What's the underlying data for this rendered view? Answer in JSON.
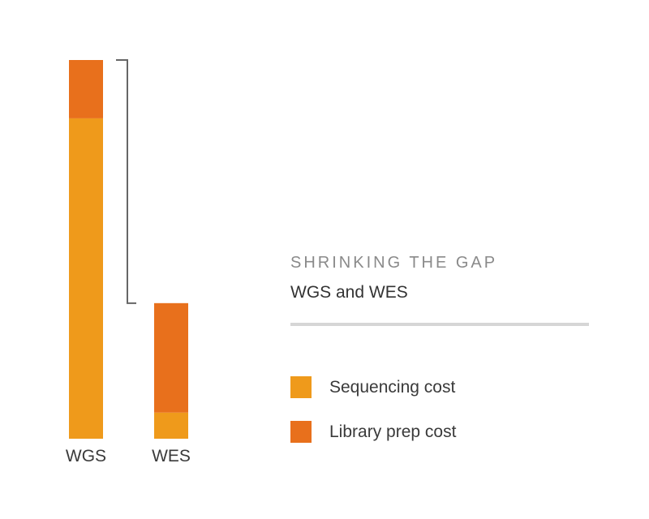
{
  "chart_data": {
    "type": "bar",
    "stacked": true,
    "title": "SHRINKING THE GAP",
    "subtitle": "WGS and WES",
    "categories": [
      "WGS",
      "WES"
    ],
    "series": [
      {
        "name": "Sequencing cost",
        "color": "#EF9A1B",
        "values": [
          84.6,
          6.9
        ]
      },
      {
        "name": "Library prep cost",
        "color": "#E8701C",
        "values": [
          15.4,
          28.9
        ]
      }
    ],
    "ylim": [
      0,
      100
    ],
    "axes_visible": false,
    "grid": false,
    "legend_position": "right",
    "annotation": "bracket showing gap between WGS and WES totals"
  }
}
